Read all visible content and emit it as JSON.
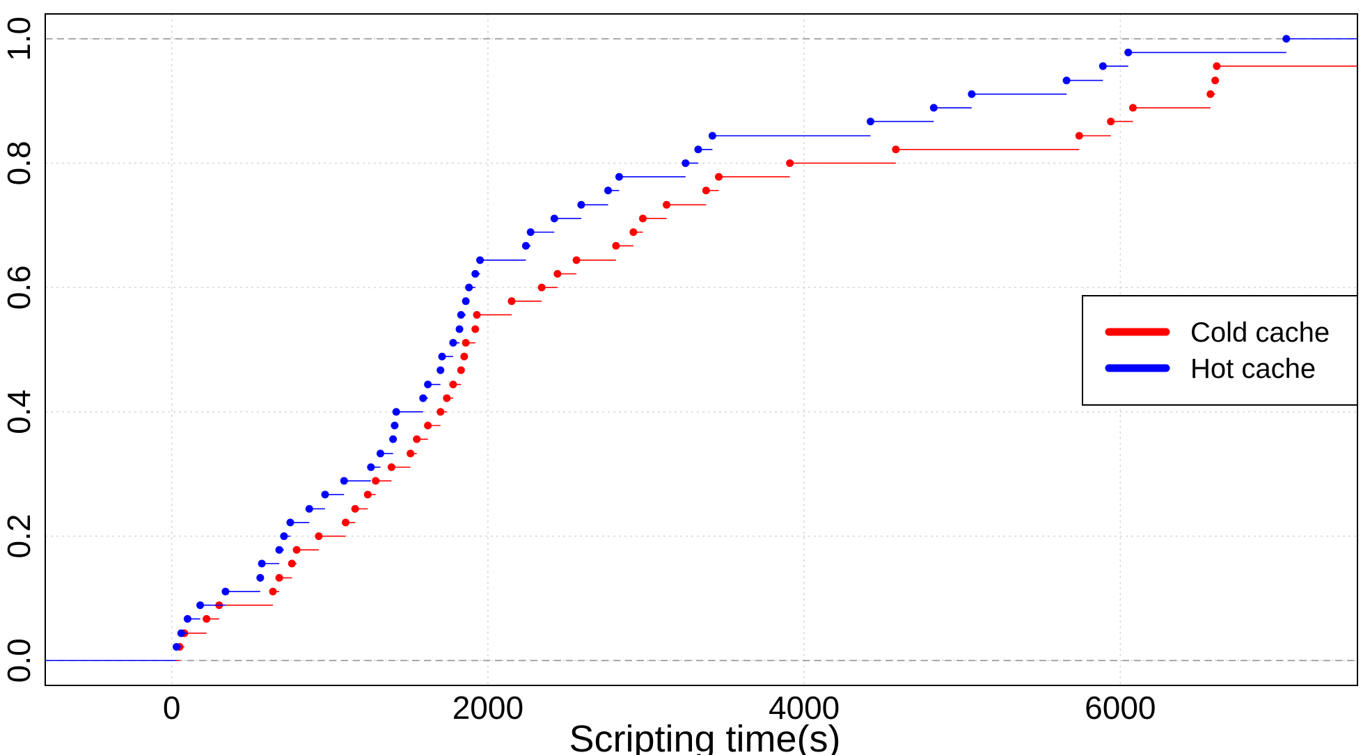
{
  "chart_data": {
    "type": "line",
    "subtype": "step-ecdf",
    "title": "",
    "xlabel": "Scripting time(s)",
    "ylabel": "",
    "xlim": [
      -800,
      7500
    ],
    "ylim": [
      -0.04,
      1.04
    ],
    "xticks": [
      0,
      2000,
      4000,
      6000
    ],
    "yticks": [
      0.0,
      0.2,
      0.4,
      0.6,
      0.8,
      1.0
    ],
    "grid": true,
    "reference_lines_y": [
      0.0,
      1.0
    ],
    "legend": {
      "position": "right",
      "entries": [
        "Cold cache",
        "Hot cache"
      ]
    },
    "series": [
      {
        "name": "Cold cache",
        "color": "#ff0000",
        "x": [
          50,
          80,
          220,
          300,
          640,
          680,
          760,
          790,
          930,
          1100,
          1160,
          1240,
          1290,
          1390,
          1510,
          1550,
          1620,
          1700,
          1740,
          1780,
          1830,
          1850,
          1860,
          1920,
          1930,
          2150,
          2340,
          2440,
          2560,
          2810,
          2920,
          2980,
          3130,
          3380,
          3460,
          3910,
          4580,
          5740,
          5940,
          6080,
          6570,
          6600,
          6610
        ],
        "y": [
          0.022,
          0.044,
          0.067,
          0.089,
          0.111,
          0.133,
          0.156,
          0.178,
          0.2,
          0.222,
          0.244,
          0.267,
          0.289,
          0.311,
          0.333,
          0.356,
          0.378,
          0.4,
          0.422,
          0.444,
          0.467,
          0.489,
          0.511,
          0.533,
          0.556,
          0.578,
          0.6,
          0.622,
          0.644,
          0.667,
          0.689,
          0.711,
          0.733,
          0.756,
          0.778,
          0.8,
          0.822,
          0.844,
          0.867,
          0.889,
          0.911,
          0.933,
          0.956
        ]
      },
      {
        "name": "Hot cache",
        "color": "#0000ff",
        "x": [
          30,
          60,
          100,
          180,
          340,
          560,
          570,
          680,
          710,
          750,
          870,
          970,
          1090,
          1260,
          1320,
          1400,
          1410,
          1420,
          1590,
          1620,
          1700,
          1710,
          1780,
          1820,
          1830,
          1860,
          1880,
          1920,
          1950,
          2240,
          2270,
          2420,
          2590,
          2760,
          2830,
          3250,
          3330,
          3420,
          4420,
          4820,
          5060,
          5660,
          5890,
          6050,
          7050
        ],
        "y": [
          0.022,
          0.044,
          0.067,
          0.089,
          0.111,
          0.133,
          0.156,
          0.178,
          0.2,
          0.222,
          0.244,
          0.267,
          0.289,
          0.311,
          0.333,
          0.356,
          0.378,
          0.4,
          0.422,
          0.444,
          0.467,
          0.489,
          0.511,
          0.533,
          0.556,
          0.578,
          0.6,
          0.622,
          0.644,
          0.667,
          0.689,
          0.711,
          0.733,
          0.756,
          0.778,
          0.8,
          0.822,
          0.844,
          0.867,
          0.889,
          0.911,
          0.933,
          0.956,
          0.978,
          1.0
        ]
      }
    ]
  }
}
